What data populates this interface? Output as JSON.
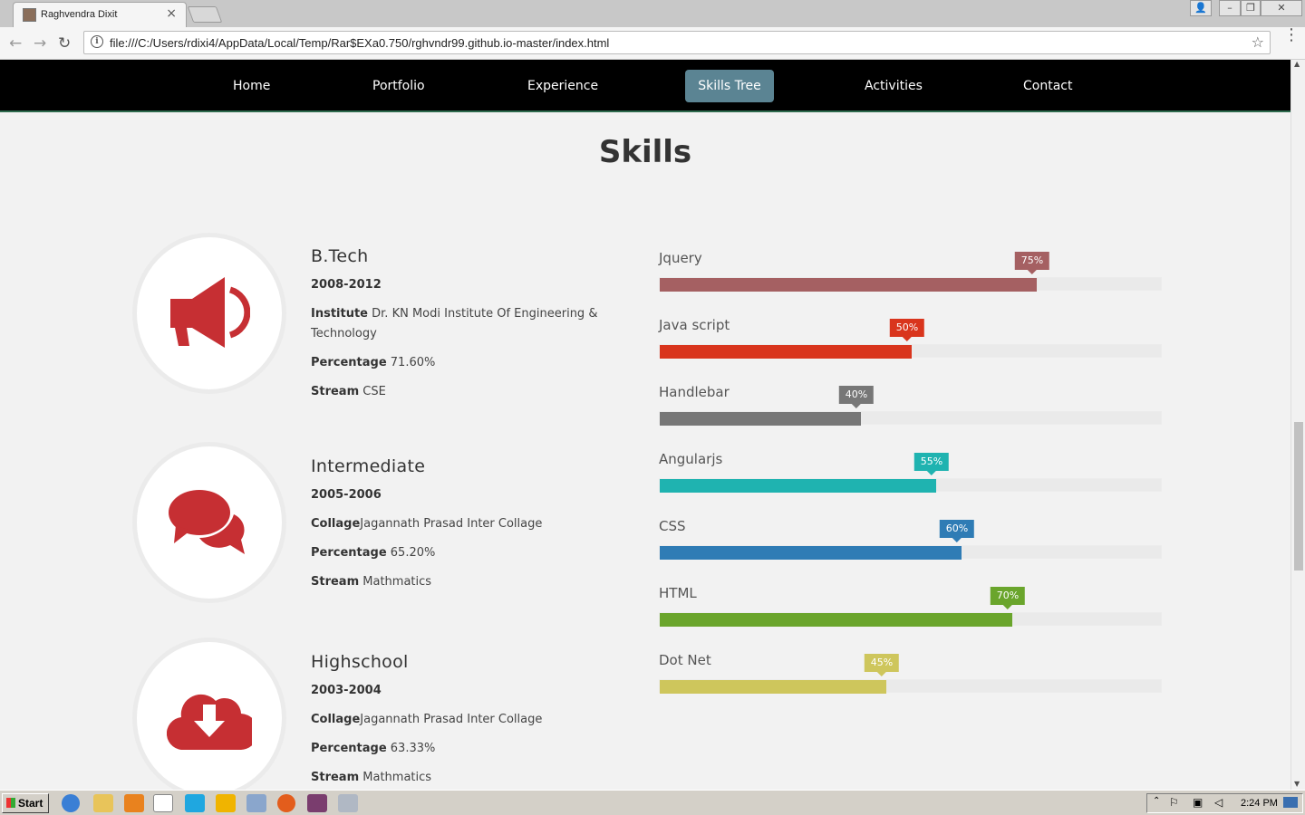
{
  "browser": {
    "tab_title": "Raghvendra Dixit",
    "url": "file:///C:/Users/rdixi4/AppData/Local/Temp/Rar$EXa0.750/rghvndr99.github.io-master/index.html"
  },
  "nav": {
    "items": [
      "Home",
      "Portfolio",
      "Experience",
      "Skills Tree",
      "Activities",
      "Contact"
    ],
    "active": "Skills Tree"
  },
  "page": {
    "heading": "Skills"
  },
  "education": [
    {
      "title": "B.Tech",
      "years": "2008-2012",
      "inst_label": "Institute",
      "inst_value": " Dr. KN Modi Institute Of Engineering & Technology",
      "pct_label": "Percentage",
      "pct_value": " 71.60%",
      "stream_label": "Stream",
      "stream_value": " CSE",
      "icon": "megaphone-icon"
    },
    {
      "title": "Intermediate",
      "years": "2005-2006",
      "inst_label": "Collage",
      "inst_value": "Jagannath Prasad Inter Collage",
      "pct_label": "Percentage",
      "pct_value": " 65.20%",
      "stream_label": "Stream",
      "stream_value": " Mathmatics",
      "icon": "chat-bubbles-icon"
    },
    {
      "title": "Highschool",
      "years": "2003-2004",
      "inst_label": "Collage",
      "inst_value": "Jagannath Prasad Inter Collage",
      "pct_label": "Percentage",
      "pct_value": " 63.33%",
      "stream_label": "Stream",
      "stream_value": " Mathmatics",
      "icon": "cloud-download-icon"
    }
  ],
  "skills": [
    {
      "name": "Jquery",
      "percent": 75,
      "label": "75%",
      "color": "#a56062"
    },
    {
      "name": "Java script",
      "percent": 50,
      "label": "50%",
      "color": "#d9351d"
    },
    {
      "name": "Handlebar",
      "percent": 40,
      "label": "40%",
      "color": "#777777"
    },
    {
      "name": "Angularjs",
      "percent": 55,
      "label": "55%",
      "color": "#1fb3b0"
    },
    {
      "name": "CSS",
      "percent": 60,
      "label": "60%",
      "color": "#2f7cb5"
    },
    {
      "name": "HTML",
      "percent": 70,
      "label": "70%",
      "color": "#6aa52c"
    },
    {
      "name": "Dot Net",
      "percent": 45,
      "label": "45%",
      "color": "#cec65c"
    }
  ],
  "icon_color": "#c62f33",
  "taskbar": {
    "start_label": "Start",
    "clock": "2:24 PM"
  }
}
